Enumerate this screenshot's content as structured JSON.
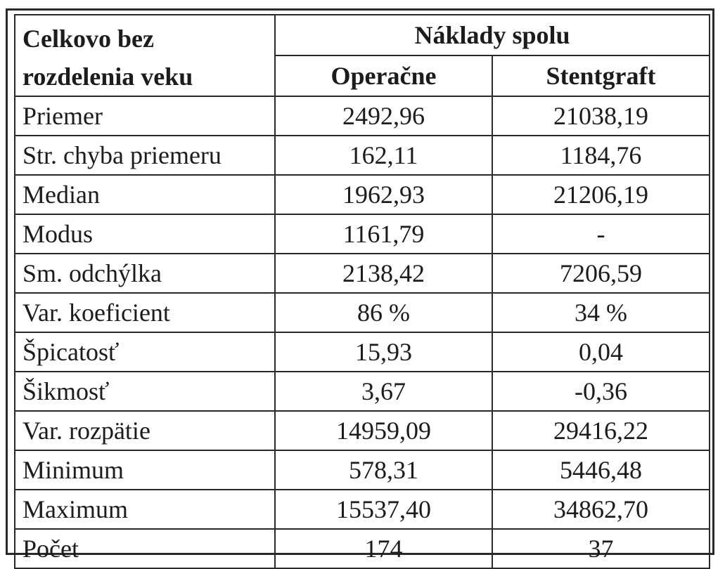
{
  "table": {
    "corner_line1": "Celkovo bez",
    "corner_line2": "rozdelenia veku",
    "group_header": "Náklady spolu",
    "columns": [
      "Operačne",
      "Stentgraft"
    ],
    "rows": [
      {
        "label": "Priemer",
        "operacne": "2492,96",
        "stentgraft": "21038,19"
      },
      {
        "label": "Str. chyba priemeru",
        "operacne": "162,11",
        "stentgraft": "1184,76"
      },
      {
        "label": "Median",
        "operacne": "1962,93",
        "stentgraft": "21206,19"
      },
      {
        "label": "Modus",
        "operacne": "1161,79",
        "stentgraft": "-"
      },
      {
        "label": "Sm. odchýlka",
        "operacne": "2138,42",
        "stentgraft": "7206,59"
      },
      {
        "label": "Var. koeficient",
        "operacne": "86 %",
        "stentgraft": "34 %"
      },
      {
        "label": "Špicatosť",
        "operacne": "15,93",
        "stentgraft": "0,04"
      },
      {
        "label": "Šikmosť",
        "operacne": "3,67",
        "stentgraft": "-0,36"
      },
      {
        "label": "Var. rozpätie",
        "operacne": "14959,09",
        "stentgraft": "29416,22"
      },
      {
        "label": "Minimum",
        "operacne": "578,31",
        "stentgraft": "5446,48"
      },
      {
        "label": "Maximum",
        "operacne": "15537,40",
        "stentgraft": "34862,70"
      },
      {
        "label": "Počet",
        "operacne": "174",
        "stentgraft": "37"
      }
    ]
  }
}
